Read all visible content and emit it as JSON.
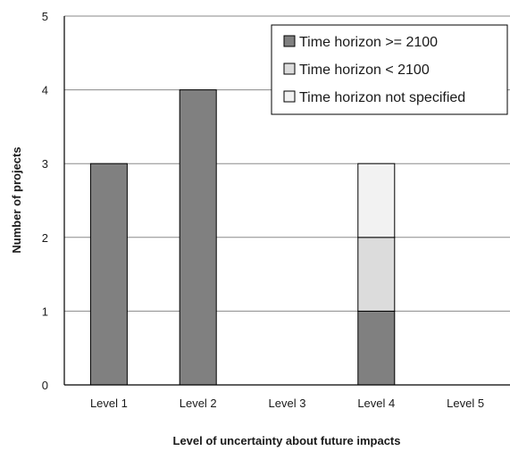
{
  "chart_data": {
    "type": "bar",
    "stacked": true,
    "categories": [
      "Level 1",
      "Level 2",
      "Level 3",
      "Level 4",
      "Level 5"
    ],
    "series": [
      {
        "name": "Time horizon >= 2100",
        "values": [
          3,
          4,
          0,
          1,
          0
        ],
        "color": "#808080"
      },
      {
        "name": "Time horizon < 2100",
        "values": [
          0,
          0,
          0,
          1,
          0
        ],
        "color": "#dcdcdc"
      },
      {
        "name": "Time horizon not specified",
        "values": [
          0,
          0,
          0,
          1,
          0
        ],
        "color": "#f2f2f2"
      }
    ],
    "title": "",
    "xlabel": "Level of uncertainty about future impacts",
    "ylabel": "Number of projects",
    "ylim": [
      0,
      5
    ],
    "yticks": [
      0,
      1,
      2,
      3,
      4,
      5
    ],
    "grid": true,
    "legend_position": "top-right"
  }
}
